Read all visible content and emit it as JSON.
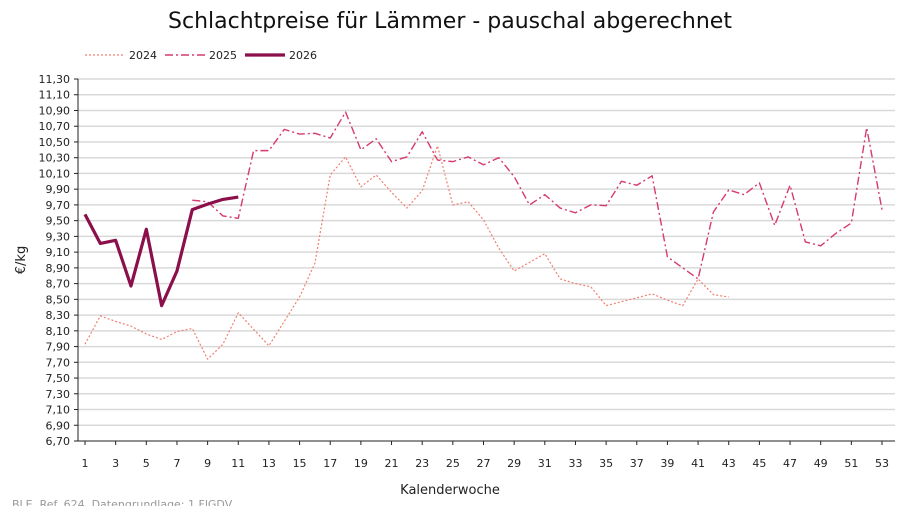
{
  "chart_data": {
    "type": "line",
    "title": "Schlachtpreise für Lämmer - pauschal abgerechnet",
    "xlabel": "Kalenderwoche",
    "ylabel": "€/kg",
    "ylim": [
      6.7,
      11.3
    ],
    "ystep": 0.2,
    "xlim": [
      1,
      53
    ],
    "xticks": [
      1,
      3,
      5,
      7,
      9,
      11,
      13,
      15,
      17,
      19,
      21,
      23,
      25,
      27,
      29,
      31,
      33,
      35,
      37,
      39,
      41,
      43,
      45,
      47,
      49,
      51,
      53
    ],
    "grid": "horizontal",
    "legend": "top-left",
    "series": [
      {
        "name": "2024",
        "style": "dotted",
        "color": "#f08070",
        "x_start": 1,
        "values": [
          7.93,
          8.29,
          8.22,
          8.16,
          8.06,
          7.99,
          8.09,
          8.13,
          7.74,
          7.93,
          8.33,
          8.12,
          7.91,
          8.22,
          8.53,
          8.96,
          10.08,
          10.31,
          9.93,
          10.08,
          9.86,
          9.66,
          9.88,
          10.45,
          9.7,
          9.74,
          9.51,
          9.15,
          8.86,
          8.97,
          9.08,
          8.76,
          8.7,
          8.66,
          8.42,
          8.47,
          8.52,
          8.57,
          8.49,
          8.42,
          8.76,
          8.56,
          8.53
        ]
      },
      {
        "name": "2025",
        "style": "dashdot",
        "color": "#d63a6e",
        "x_start": 8,
        "values": [
          9.76,
          9.74,
          9.56,
          9.53,
          10.39,
          10.39,
          10.66,
          10.6,
          10.61,
          10.55,
          10.88,
          10.4,
          10.54,
          10.25,
          10.31,
          10.63,
          10.27,
          10.25,
          10.31,
          10.21,
          10.3,
          10.06,
          9.7,
          9.83,
          9.66,
          9.6,
          9.7,
          9.69,
          10.0,
          9.95,
          10.07,
          9.04,
          8.9,
          8.76,
          9.61,
          9.89,
          9.83,
          9.98,
          9.44,
          9.95,
          9.23,
          9.18,
          9.34,
          9.47,
          10.68,
          9.64
        ]
      },
      {
        "name": "2026",
        "style": "solid-thick",
        "color": "#8b0f4a",
        "x_start": 1,
        "values": [
          9.58,
          9.21,
          9.25,
          8.67,
          9.39,
          8.42,
          8.86,
          9.64,
          9.71,
          9.77,
          9.8
        ]
      }
    ]
  },
  "footer": "BLE, Ref. 624, Datengrundlage: 1.FlGDV"
}
